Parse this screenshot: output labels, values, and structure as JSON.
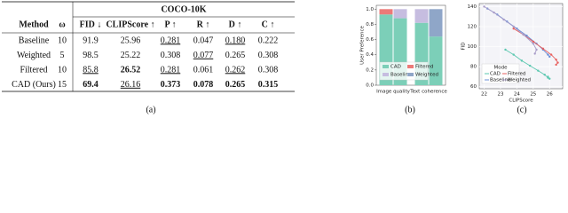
{
  "table": {
    "group_header": "COCO-10K",
    "columns": [
      "Method",
      "ω",
      "FID ↓",
      "CLIPScore ↑",
      "P ↑",
      "R ↑",
      "D ↑",
      "C ↑"
    ],
    "rows": [
      [
        "Baseline",
        "10",
        "91.9",
        "25.96",
        "0.281",
        "0.047",
        "0.180",
        "0.222"
      ],
      [
        "Weighted",
        "5",
        "98.5",
        "25.22",
        "0.308",
        "0.077",
        "0.265",
        "0.308"
      ],
      [
        "Filtered",
        "10",
        "85.8",
        "26.52",
        "0.281",
        "0.061",
        "0.262",
        "0.308"
      ],
      [
        "CAD (Ours)",
        "15",
        "69.4",
        "26.16",
        "0.373",
        "0.078",
        "0.265",
        "0.315"
      ]
    ],
    "caption": "(a)"
  },
  "chart_data": [
    {
      "type": "stacked_bar",
      "caption": "(b)",
      "ylabel": "User Preference",
      "categories": [
        "Image quality",
        null,
        "Text coherence",
        null
      ],
      "series": [
        {
          "name": "CAD",
          "color": "#7ccfb8",
          "values": [
            0.93,
            0.88,
            0.82,
            0.64
          ]
        },
        {
          "name": "Filtered",
          "color": "#ec7a78",
          "values": [
            0.07,
            null,
            null,
            null
          ]
        },
        {
          "name": "Baseline",
          "color": "#c6bde0",
          "values": [
            null,
            0.12,
            0.18,
            null
          ]
        },
        {
          "name": "Weighted",
          "color": "#8fa6c8",
          "values": [
            null,
            null,
            null,
            0.36
          ]
        }
      ],
      "ylim": [
        0,
        1.05
      ],
      "yticks": [
        {
          "value": 0,
          "label": "0.0"
        },
        {
          "value": 0.2,
          "label": "0.2"
        },
        {
          "value": 0.4,
          "label": "0.4"
        },
        {
          "value": 0.6,
          "label": "0.6"
        },
        {
          "value": 0.8,
          "label": "0.8"
        },
        {
          "value": 1,
          "label": "1.0"
        }
      ],
      "legend": "lower-left"
    },
    {
      "type": "line",
      "caption": "(c)",
      "xlabel": "CLIPScore",
      "ylabel": "FID",
      "legend_title": "Mode",
      "series": [
        {
          "name": "CAD",
          "color": "#5cc8b0",
          "x": [
            23.3,
            23.8,
            24.3,
            24.8,
            25.3,
            25.7,
            25.9,
            26.0,
            25.9
          ],
          "values": [
            97,
            92,
            86,
            81,
            76,
            72,
            69,
            68,
            70
          ]
        },
        {
          "name": "Baseline",
          "color": "#6a8fd8",
          "x": [
            22.2,
            22.8,
            23.4,
            24,
            24.6,
            25.2,
            25.6,
            25.9,
            26.0
          ],
          "values": [
            138,
            132,
            125,
            118,
            111,
            103,
            97,
            92,
            90
          ]
        },
        {
          "name": "Filtered",
          "color": "#e8605e",
          "x": [
            23.8,
            24.4,
            25.0,
            25.6,
            26.1,
            26.4,
            26.5,
            26.4
          ],
          "values": [
            118,
            112,
            105,
            98,
            92,
            87,
            84,
            82
          ]
        },
        {
          "name": "Weighted",
          "color": "#a89cc8",
          "x": [
            22.0,
            22.6,
            23.2,
            23.8,
            24.4,
            25.0,
            25.2,
            25.1
          ],
          "values": [
            140,
            134,
            127,
            120,
            112,
            103,
            97,
            93
          ]
        }
      ],
      "xlim": [
        21.7,
        26.8
      ],
      "ylim": [
        58,
        143
      ],
      "xticks": [
        22,
        23,
        24,
        25,
        26
      ],
      "yticks": [
        60,
        80,
        100,
        120,
        140
      ],
      "grid": true,
      "legend": "lower-left"
    }
  ]
}
